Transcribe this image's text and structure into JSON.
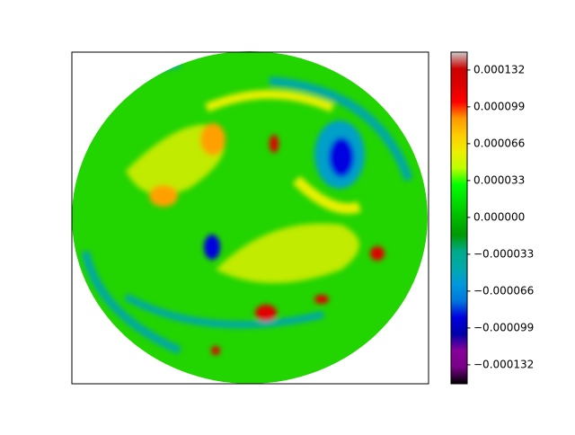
{
  "chart_data": {
    "type": "contourf",
    "colormap": "nipy_spectral",
    "clim": [
      -0.000149,
      0.000148
    ],
    "cticks": [
      {
        "value": -0.000132,
        "label": "−0.000132"
      },
      {
        "value": -9.9e-05,
        "label": "−0.000099"
      },
      {
        "value": -6.6e-05,
        "label": "−0.000066"
      },
      {
        "value": -3.3e-05,
        "label": "−0.000033"
      },
      {
        "value": 0,
        "label": "0.000000"
      },
      3.3e-05,
      6.6e-05,
      9.9e-05,
      0.000132
    ]
  }
}
